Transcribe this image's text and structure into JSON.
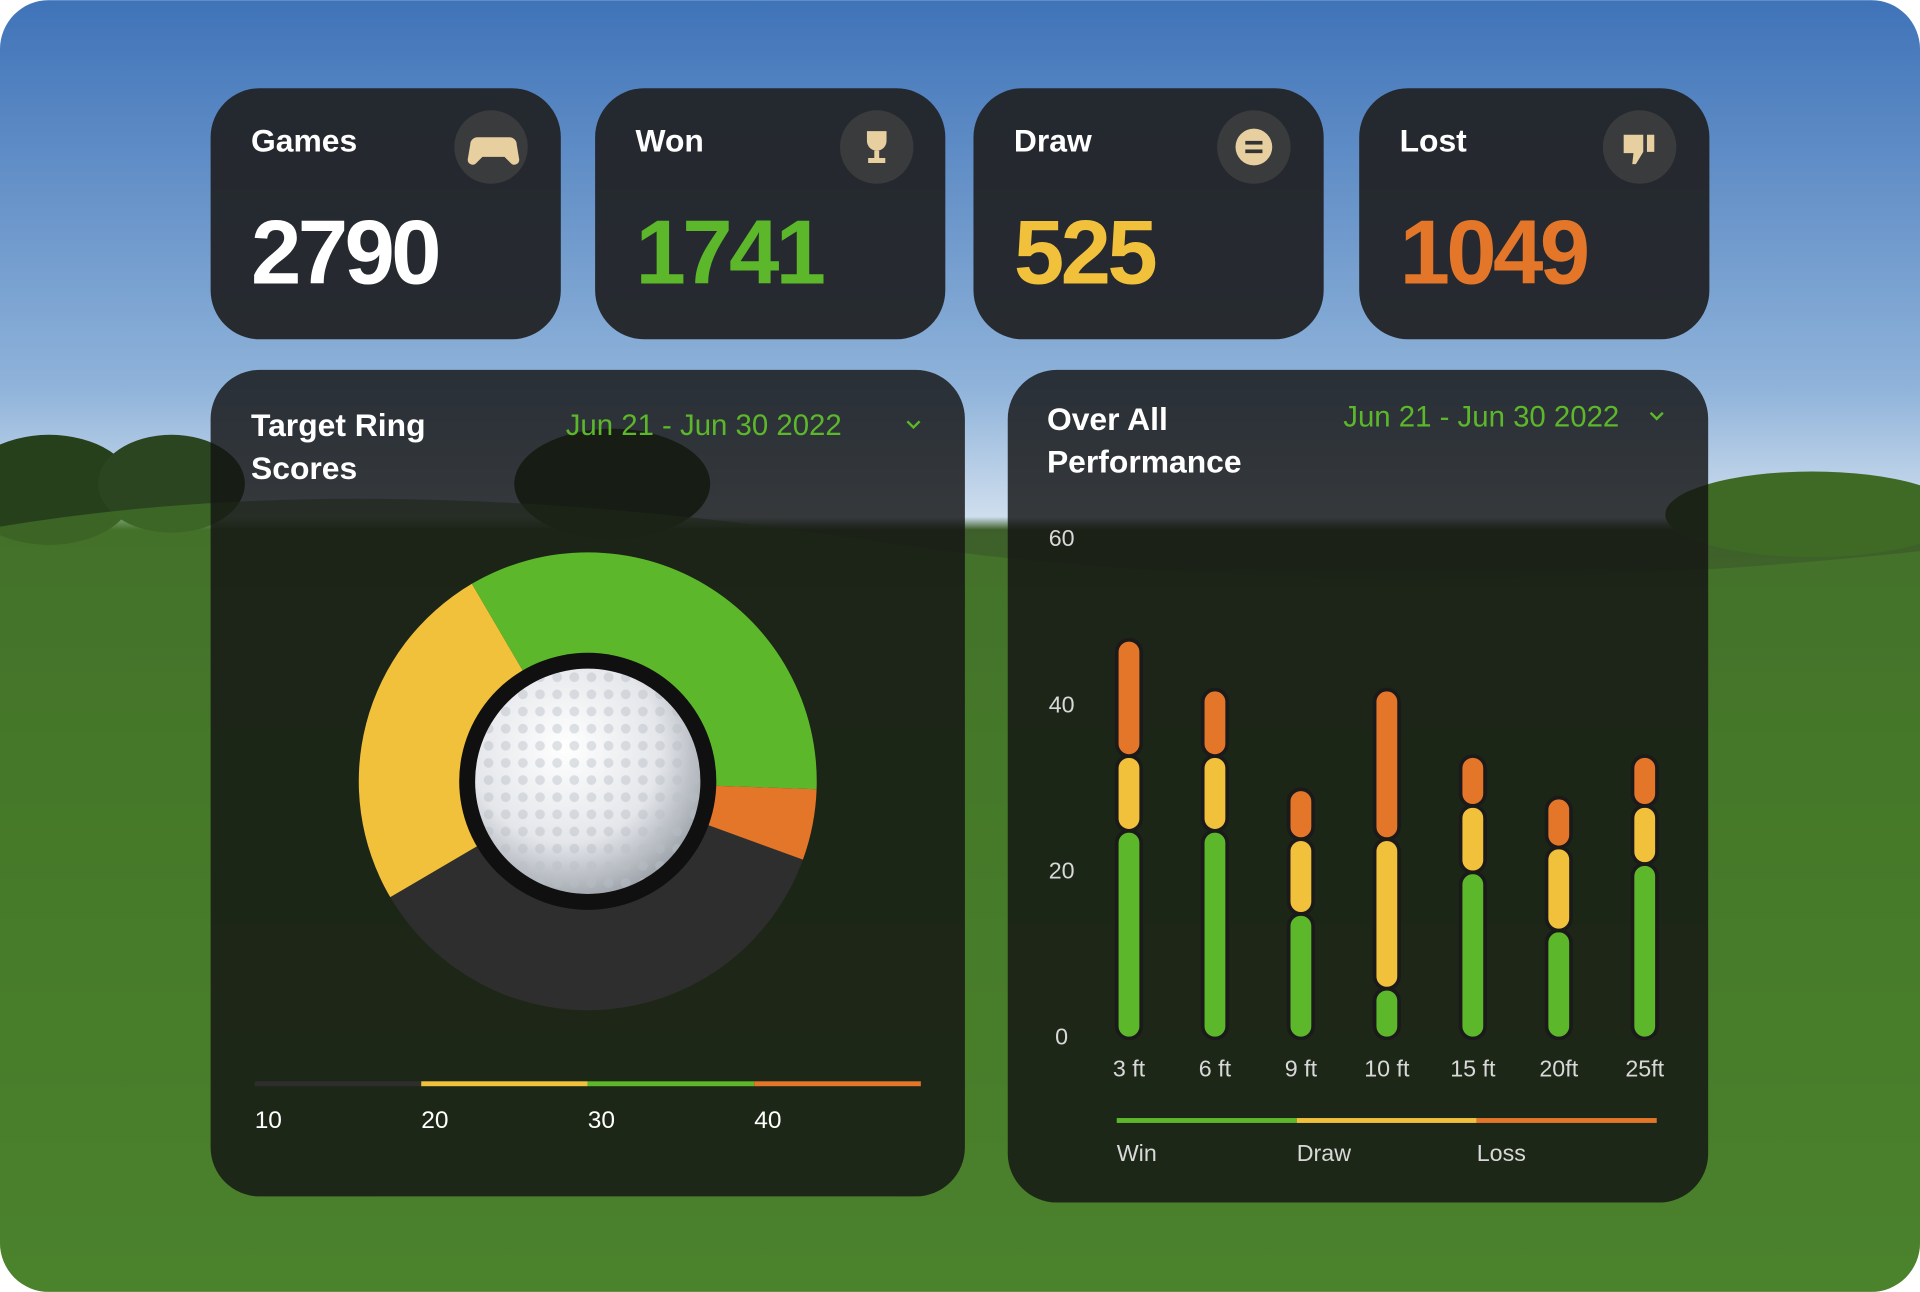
{
  "cards": [
    {
      "title": "Games",
      "value": "2790",
      "color": "#ffffff"
    },
    {
      "title": "Won",
      "value": "1741",
      "color": "#5cb82a"
    },
    {
      "title": "Draw",
      "value": "525",
      "color": "#f2c13c"
    },
    {
      "title": "Lost",
      "value": "1049",
      "color": "#e4762a"
    }
  ],
  "chart_data": [
    {
      "type": "donut",
      "title": "Target Ring Scores",
      "subtitle": "Jun 21 - Jun 30 2022",
      "categories": [
        "10",
        "20",
        "30",
        "40"
      ],
      "values": [
        36,
        25,
        34,
        5
      ],
      "colors": [
        "#2e2e2e",
        "#f2c13c",
        "#5cb82a",
        "#e4762a"
      ]
    },
    {
      "type": "bar",
      "stacked": true,
      "title": "Over All Performance",
      "subtitle": "Jun 21 - Jun 30 2022",
      "categories": [
        "3 ft",
        "6 ft",
        "9 ft",
        "10 ft",
        "15 ft",
        "20ft",
        "25ft"
      ],
      "series": [
        {
          "name": "Win",
          "color": "#5cb82a",
          "values": [
            25,
            25,
            15,
            6,
            20,
            13,
            21
          ]
        },
        {
          "name": "Draw",
          "color": "#f2c13c",
          "values": [
            9,
            9,
            9,
            18,
            8,
            10,
            7
          ]
        },
        {
          "name": "Loss",
          "color": "#e4762a",
          "values": [
            14,
            8,
            6,
            18,
            6,
            6,
            6
          ]
        }
      ],
      "ylim": [
        0,
        60
      ],
      "yticks": [
        0,
        20,
        40,
        60
      ]
    }
  ]
}
